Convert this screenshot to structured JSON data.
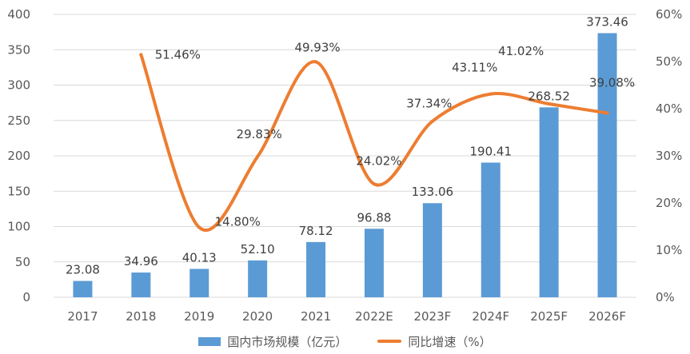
{
  "chart_data": {
    "type": "bar",
    "categories": [
      "2017",
      "2018",
      "2019",
      "2020",
      "2021",
      "2022E",
      "2023F",
      "2024F",
      "2025F",
      "2026F"
    ],
    "series": [
      {
        "name": "国内市场规模（亿元）",
        "type": "bar",
        "axis": "left",
        "values": [
          23.08,
          34.96,
          40.13,
          52.1,
          78.12,
          96.88,
          133.06,
          190.41,
          268.52,
          373.46
        ],
        "labels": [
          "23.08",
          "34.96",
          "40.13",
          "52.10",
          "78.12",
          "96.88",
          "133.06",
          "190.41",
          "268.52",
          "373.46"
        ]
      },
      {
        "name": "同比增速（%）",
        "type": "line",
        "axis": "right",
        "values": [
          null,
          51.46,
          14.8,
          29.83,
          49.93,
          24.02,
          37.34,
          43.11,
          41.02,
          39.08
        ],
        "labels": [
          "",
          "51.46%",
          "14.80%",
          "29.83%",
          "49.93%",
          "24.02%",
          "37.34%",
          "43.11%",
          "41.02%",
          "39.08%"
        ]
      }
    ],
    "y_left": {
      "min": 0,
      "max": 400,
      "step": 50,
      "ticks": [
        "0",
        "50",
        "100",
        "150",
        "200",
        "250",
        "300",
        "350",
        "400"
      ]
    },
    "y_right": {
      "min": 0,
      "max": 60,
      "step": 10,
      "ticks": [
        "0%",
        "10%",
        "20%",
        "30%",
        "40%",
        "50%",
        "60%"
      ]
    },
    "title": "",
    "xlabel": "",
    "ylabel": "",
    "grid": true,
    "legend_position": "bottom",
    "colors": {
      "bar": "#5b9bd5",
      "line": "#ed7d31",
      "grid": "#d9d9d9",
      "axis_text": "#595959",
      "label_text": "#404040"
    }
  }
}
